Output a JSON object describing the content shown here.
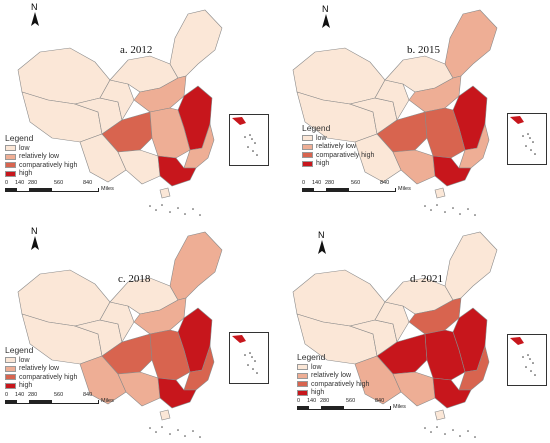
{
  "colors": {
    "low": "#fbe7d7",
    "relatively_low": "#eeae95",
    "comparatively_high": "#d8644f",
    "high": "#c7161c",
    "border": "#8a8a8a"
  },
  "legend": {
    "title": "Legend",
    "items": [
      {
        "key": "low",
        "label": "low"
      },
      {
        "key": "relatively_low",
        "label": "relatively low"
      },
      {
        "key": "comparatively_high",
        "label": "comparatively high"
      },
      {
        "key": "high",
        "label": "high"
      }
    ]
  },
  "scale": {
    "ticks": [
      "0",
      "140",
      "280",
      "560",
      "840"
    ],
    "unit": "Miles"
  },
  "north_label": "N",
  "panels": [
    {
      "title": "a. 2012",
      "levels": {
        "northwest": "low",
        "tibet": "low",
        "inner_mongolia": "low",
        "northeast": "low",
        "gansu": "low",
        "qinghai": "low",
        "yunnan": "low",
        "guangxi": "low",
        "sichuan": "comparatively_high",
        "north_china": "relatively_low",
        "central": "relatively_low",
        "shandong_jiangsu": "high",
        "southeast": "relatively_low",
        "guangdong": "high",
        "hainan": "low"
      }
    },
    {
      "title": "b. 2015",
      "levels": {
        "northwest": "low",
        "tibet": "low",
        "inner_mongolia": "low",
        "northeast": "relatively_low",
        "gansu": "low",
        "qinghai": "low",
        "yunnan": "low",
        "guangxi": "relatively_low",
        "sichuan": "comparatively_high",
        "north_china": "relatively_low",
        "central": "comparatively_high",
        "shandong_jiangsu": "high",
        "southeast": "relatively_low",
        "guangdong": "high",
        "hainan": "low"
      }
    },
    {
      "title": "c. 2018",
      "levels": {
        "northwest": "low",
        "tibet": "low",
        "inner_mongolia": "low",
        "northeast": "relatively_low",
        "gansu": "low",
        "qinghai": "low",
        "yunnan": "relatively_low",
        "guangxi": "relatively_low",
        "sichuan": "comparatively_high",
        "north_china": "relatively_low",
        "central": "comparatively_high",
        "shandong_jiangsu": "high",
        "southeast": "comparatively_high",
        "guangdong": "high",
        "hainan": "low"
      }
    },
    {
      "title": "d. 2021",
      "levels": {
        "northwest": "low",
        "tibet": "low",
        "inner_mongolia": "low",
        "northeast": "low",
        "gansu": "low",
        "qinghai": "low",
        "yunnan": "relatively_low",
        "guangxi": "relatively_low",
        "sichuan": "high",
        "north_china": "comparatively_high",
        "central": "high",
        "shandong_jiangsu": "high",
        "southeast": "comparatively_high",
        "guangdong": "high",
        "hainan": "low"
      }
    }
  ]
}
